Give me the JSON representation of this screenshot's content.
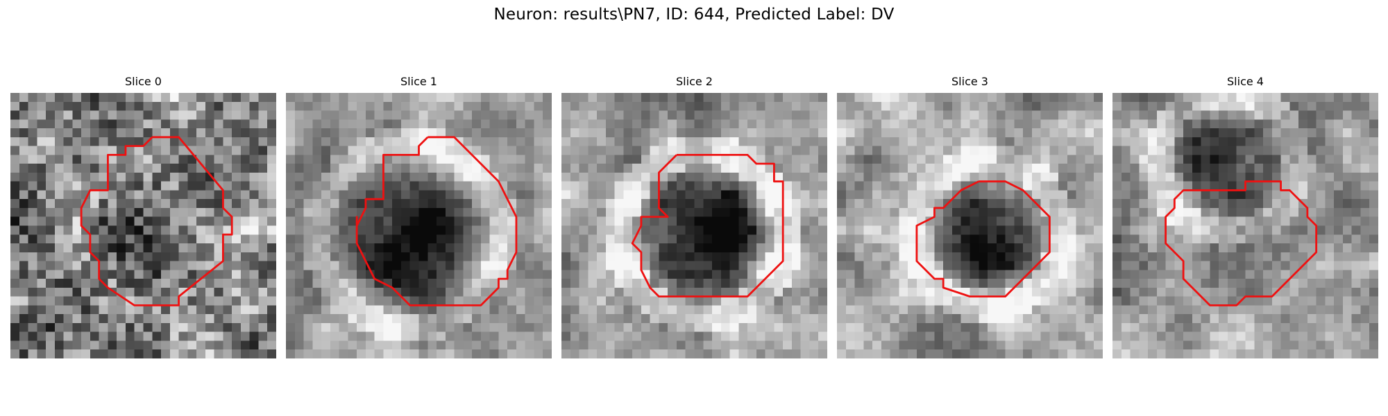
{
  "figure": {
    "title": "Neuron: results\\PN7, ID: 644, Predicted Label: DV"
  },
  "colors": {
    "contour": "#ee1111",
    "background": "#ffffff"
  },
  "panels": [
    {
      "title": "Slice 0"
    },
    {
      "title": "Slice 1"
    },
    {
      "title": "Slice 2"
    },
    {
      "title": "Slice 3"
    },
    {
      "title": "Slice 4"
    }
  ]
}
